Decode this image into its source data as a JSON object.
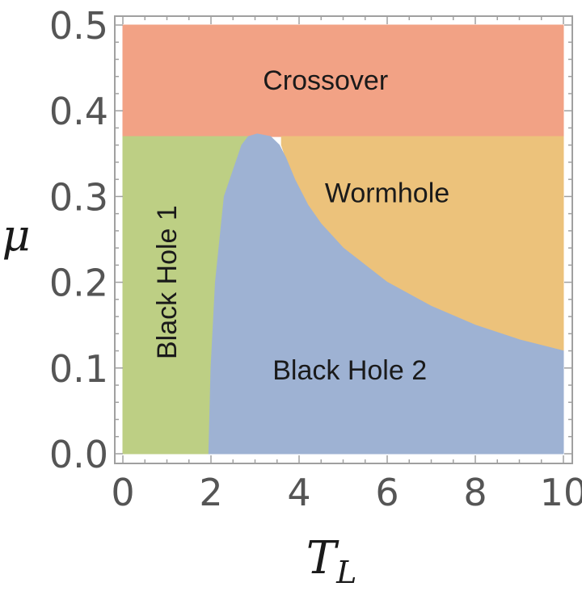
{
  "chart_data": {
    "type": "heatmap",
    "title": "",
    "xlabel": "T",
    "xlabel_subscript": "L",
    "ylabel": "μ",
    "xlim": [
      0,
      10
    ],
    "ylim": [
      0,
      0.5
    ],
    "x_ticks": [
      0,
      2,
      4,
      6,
      8,
      10
    ],
    "x_tick_labels": [
      "0",
      "2",
      "4",
      "6",
      "8",
      "10"
    ],
    "y_ticks": [
      0.0,
      0.1,
      0.2,
      0.3,
      0.4,
      0.5
    ],
    "y_tick_labels": [
      "0.0",
      "0.1",
      "0.2",
      "0.3",
      "0.4",
      "0.5"
    ],
    "grid": false,
    "regions": [
      {
        "name": "Crossover",
        "color": "#f2a285",
        "label_at": [
          4.6,
          0.433
        ],
        "label_rotation": 0,
        "boundary": [
          [
            0,
            0.37
          ],
          [
            10,
            0.37
          ],
          [
            10,
            0.5
          ],
          [
            0,
            0.5
          ]
        ]
      },
      {
        "name": "Black Hole 1",
        "color": "#bdcf84",
        "label_at": [
          1.05,
          0.2
        ],
        "label_rotation": -90,
        "boundary": [
          [
            0,
            0
          ],
          [
            1.95,
            0
          ],
          [
            2.0,
            0.1
          ],
          [
            2.1,
            0.2
          ],
          [
            2.3,
            0.3
          ],
          [
            2.7,
            0.36
          ],
          [
            2.9,
            0.37
          ],
          [
            0,
            0.37
          ]
        ]
      },
      {
        "name": "Wormhole",
        "color": "#ecc27b",
        "label_at": [
          6.0,
          0.302
        ],
        "label_rotation": 0,
        "boundary": [
          [
            3.6,
            0.37
          ],
          [
            10,
            0.37
          ],
          [
            10,
            0.12
          ],
          [
            9,
            0.133
          ],
          [
            8,
            0.15
          ],
          [
            7,
            0.172
          ],
          [
            6,
            0.2
          ],
          [
            5,
            0.24
          ],
          [
            4.5,
            0.268
          ],
          [
            4.2,
            0.29
          ],
          [
            3.9,
            0.32
          ],
          [
            3.7,
            0.345
          ],
          [
            3.6,
            0.36
          ]
        ]
      },
      {
        "name": "Black Hole 2",
        "color": "#9eb2d3",
        "label_at": [
          5.15,
          0.095
        ],
        "label_rotation": 0,
        "boundary": [
          [
            1.95,
            0
          ],
          [
            10,
            0
          ],
          [
            10,
            0.12
          ],
          [
            9,
            0.133
          ],
          [
            8,
            0.15
          ],
          [
            7,
            0.172
          ],
          [
            6,
            0.2
          ],
          [
            5,
            0.24
          ],
          [
            4.5,
            0.268
          ],
          [
            4.2,
            0.29
          ],
          [
            3.9,
            0.32
          ],
          [
            3.7,
            0.345
          ],
          [
            3.55,
            0.36
          ],
          [
            3.35,
            0.37
          ],
          [
            3.05,
            0.373
          ],
          [
            2.85,
            0.37
          ],
          [
            2.7,
            0.36
          ],
          [
            2.3,
            0.3
          ],
          [
            2.1,
            0.2
          ],
          [
            2.0,
            0.1
          ]
        ]
      }
    ],
    "region_label_colors": {
      "text": "#1a1a1a"
    },
    "tick_label_color": "#555555",
    "frame_color": "#a0a0a0"
  }
}
